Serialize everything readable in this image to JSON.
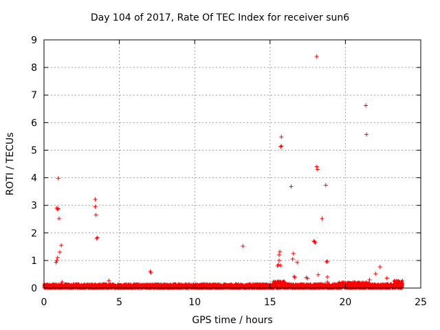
{
  "chart_data": {
    "type": "scatter",
    "title": "Day 104 of 2017, Rate Of TEC Index for receiver sun6",
    "xlabel": "GPS time / hours",
    "ylabel": "ROTI / TECUs",
    "xlim": [
      0,
      25
    ],
    "ylim": [
      0,
      9
    ],
    "xticks": [
      0,
      5,
      10,
      15,
      20,
      25
    ],
    "yticks": [
      0,
      1,
      2,
      3,
      4,
      5,
      6,
      7,
      8,
      9
    ],
    "grid": true,
    "marker": "plus",
    "color": "#ff0000",
    "baseline": {
      "x_range": [
        0,
        23.8
      ],
      "y_typical_max": 0.15,
      "y_elevated_ranges": [
        [
          15.2,
          16.0,
          0.25
        ],
        [
          19.5,
          21.6,
          0.22
        ],
        [
          23.2,
          23.8,
          0.28
        ]
      ]
    },
    "points": [
      [
        0.8,
        0.93
      ],
      [
        0.85,
        1.0
      ],
      [
        0.9,
        1.1
      ],
      [
        0.9,
        2.85
      ],
      [
        0.95,
        2.88
      ],
      [
        0.85,
        2.9
      ],
      [
        0.95,
        3.98
      ],
      [
        1.0,
        2.52
      ],
      [
        1.05,
        1.3
      ],
      [
        1.15,
        1.55
      ],
      [
        1.2,
        0.22
      ],
      [
        3.4,
        3.22
      ],
      [
        3.4,
        2.95
      ],
      [
        3.45,
        2.65
      ],
      [
        3.5,
        1.8
      ],
      [
        3.55,
        1.83
      ],
      [
        4.3,
        0.27
      ],
      [
        7.05,
        0.6
      ],
      [
        7.1,
        0.55
      ],
      [
        13.2,
        1.52
      ],
      [
        15.5,
        0.8
      ],
      [
        15.55,
        0.85
      ],
      [
        15.6,
        1.0
      ],
      [
        15.6,
        1.2
      ],
      [
        15.65,
        1.32
      ],
      [
        15.7,
        0.82
      ],
      [
        15.7,
        5.12
      ],
      [
        15.75,
        5.15
      ],
      [
        15.75,
        5.48
      ],
      [
        16.4,
        3.68
      ],
      [
        16.5,
        1.05
      ],
      [
        16.55,
        1.25
      ],
      [
        16.6,
        0.42
      ],
      [
        16.65,
        0.38
      ],
      [
        16.8,
        0.93
      ],
      [
        17.4,
        0.38
      ],
      [
        17.5,
        0.35
      ],
      [
        17.9,
        1.7
      ],
      [
        17.95,
        1.68
      ],
      [
        18.0,
        1.65
      ],
      [
        18.1,
        8.4
      ],
      [
        18.1,
        4.4
      ],
      [
        18.15,
        4.3
      ],
      [
        18.2,
        0.48
      ],
      [
        18.45,
        2.52
      ],
      [
        18.7,
        3.73
      ],
      [
        18.75,
        0.95
      ],
      [
        18.8,
        0.97
      ],
      [
        18.8,
        0.4
      ],
      [
        18.8,
        0.22
      ],
      [
        21.35,
        6.62
      ],
      [
        21.4,
        5.57
      ],
      [
        21.6,
        0.3
      ],
      [
        22.0,
        0.52
      ],
      [
        22.3,
        0.77
      ],
      [
        22.75,
        0.36
      ]
    ]
  }
}
